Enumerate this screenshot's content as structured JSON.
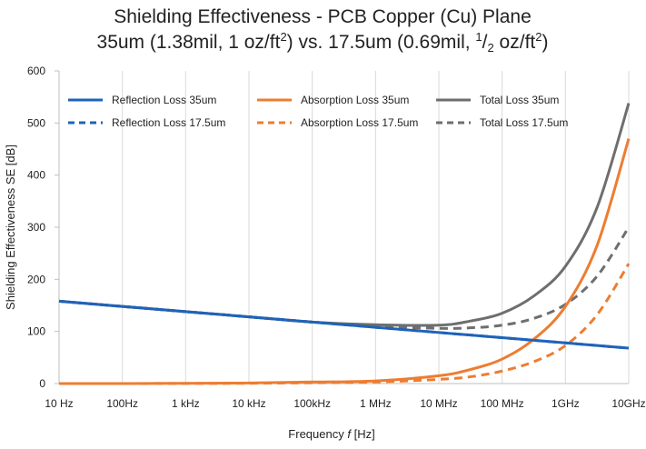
{
  "chart_data": {
    "type": "line",
    "title_line1": "Shielding Effectiveness - PCB Copper (Cu) Plane",
    "title_line2": {
      "prefix": "35um (1.38mil, 1 oz/ft",
      "sup1": "2",
      "middle": ") vs. 17.5um (0.69mil, ",
      "frac_num": "1",
      "frac_sep": "/",
      "frac_den": "2",
      "suffix": " oz/ft",
      "sup2": "2",
      "end": ")"
    },
    "xlabel": {
      "prefix": "Frequency ",
      "symbol": "f",
      "suffix": " [Hz]"
    },
    "ylabel": "Shielding Effectiveness SE [dB]",
    "ylim": [
      0,
      600
    ],
    "yticks": [
      0,
      100,
      200,
      300,
      400,
      500,
      600
    ],
    "xscale": "log",
    "x_log10_range": [
      1,
      10
    ],
    "xtick_labels": [
      "10 Hz",
      "100Hz",
      "1 kHz",
      "10 kHz",
      "100kHz",
      "1 MHz",
      "10 MHz",
      "100 MHz",
      "1GHz",
      "10GHz"
    ],
    "x_log10": [
      1,
      2,
      3,
      4,
      5,
      6,
      7,
      7.5,
      8,
      8.5,
      9,
      9.5,
      10
    ],
    "grid": "vertical",
    "legend_position": "top",
    "colors": {
      "reflection": "#1F63B8",
      "absorption": "#ED7D31",
      "total": "#6E6E6E",
      "axis": "#BFBFBF"
    },
    "series": [
      {
        "name": "Reflection Loss 35um",
        "color_key": "reflection",
        "dashed": false,
        "values": [
          158,
          148,
          138,
          128,
          118,
          108,
          98,
          93,
          88,
          83,
          78,
          73,
          68
        ]
      },
      {
        "name": "Absorption Loss 35um",
        "color_key": "absorption",
        "dashed": false,
        "values": [
          0,
          0.1,
          0.5,
          1,
          3,
          5,
          15,
          27,
          47,
          85,
          148,
          265,
          470
        ]
      },
      {
        "name": "Total Loss 35um",
        "color_key": "total",
        "dashed": false,
        "values": [
          158,
          148,
          138,
          128,
          118,
          113,
          112,
          120,
          135,
          168,
          225,
          338,
          538
        ]
      },
      {
        "name": "Reflection Loss 17.5um",
        "color_key": "reflection",
        "dashed": true,
        "values": [
          158,
          148,
          138,
          128,
          118,
          108,
          98,
          93,
          88,
          83,
          78,
          73,
          68
        ]
      },
      {
        "name": "Absorption Loss 17.5um",
        "color_key": "absorption",
        "dashed": true,
        "values": [
          0,
          0.05,
          0.2,
          0.5,
          1.5,
          3,
          8,
          13,
          24,
          42,
          73,
          132,
          230
        ]
      },
      {
        "name": "Total Loss 17.5um",
        "color_key": "total",
        "dashed": true,
        "values": [
          158,
          148,
          138,
          128,
          118,
          110,
          106,
          107,
          112,
          125,
          152,
          206,
          300
        ]
      }
    ]
  }
}
